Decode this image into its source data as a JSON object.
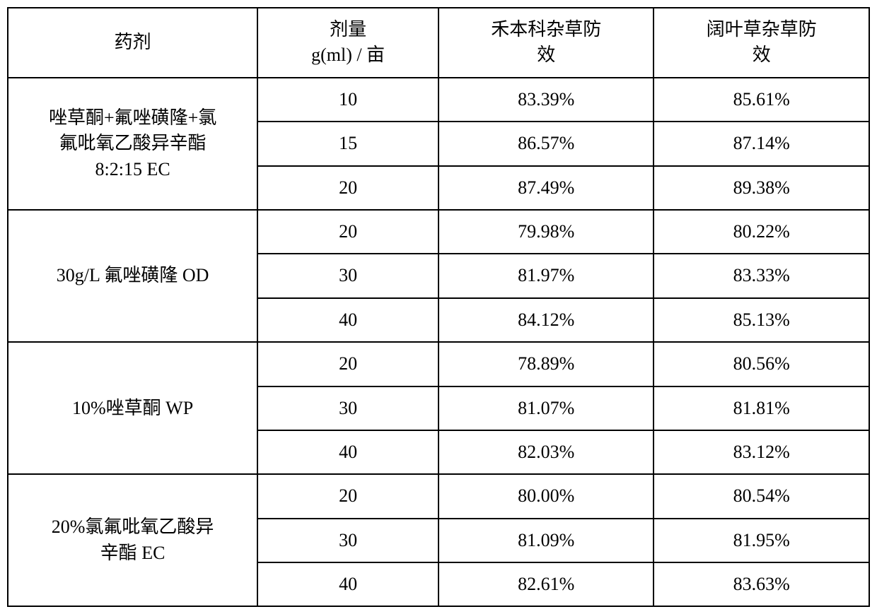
{
  "table": {
    "type": "table",
    "background_color": "#ffffff",
    "border_color": "#000000",
    "border_width": 2,
    "font_size": 26,
    "font_family": "SimSun",
    "column_widths_percent": [
      29,
      21,
      25,
      25
    ],
    "alignment": "center",
    "headers": {
      "agent": "药剂",
      "dose_line1": "剂量",
      "dose_line2": "g(ml) / 亩",
      "eff1_line1": "禾本科杂草防",
      "eff1_line2": "效",
      "eff2_line1": "阔叶草杂草防",
      "eff2_line2": "效"
    },
    "groups": [
      {
        "agent_line1": "唑草酮+氟唑磺隆+氯",
        "agent_line2": "氟吡氧乙酸异辛酯",
        "agent_line3": "8:2:15 EC",
        "rows": [
          {
            "dose": "10",
            "eff1": "83.39%",
            "eff2": "85.61%"
          },
          {
            "dose": "15",
            "eff1": "86.57%",
            "eff2": "87.14%"
          },
          {
            "dose": "20",
            "eff1": "87.49%",
            "eff2": "89.38%"
          }
        ]
      },
      {
        "agent_line1": "30g/L 氟唑磺隆 OD",
        "agent_line2": "",
        "agent_line3": "",
        "rows": [
          {
            "dose": "20",
            "eff1": "79.98%",
            "eff2": "80.22%"
          },
          {
            "dose": "30",
            "eff1": "81.97%",
            "eff2": "83.33%"
          },
          {
            "dose": "40",
            "eff1": "84.12%",
            "eff2": "85.13%"
          }
        ]
      },
      {
        "agent_line1": "10%唑草酮 WP",
        "agent_line2": "",
        "agent_line3": "",
        "rows": [
          {
            "dose": "20",
            "eff1": "78.89%",
            "eff2": "80.56%"
          },
          {
            "dose": "30",
            "eff1": "81.07%",
            "eff2": "81.81%"
          },
          {
            "dose": "40",
            "eff1": "82.03%",
            "eff2": "83.12%"
          }
        ]
      },
      {
        "agent_line1": "20%氯氟吡氧乙酸异",
        "agent_line2": "辛酯 EC",
        "agent_line3": "",
        "rows": [
          {
            "dose": "20",
            "eff1": "80.00%",
            "eff2": "80.54%"
          },
          {
            "dose": "30",
            "eff1": "81.09%",
            "eff2": "81.95%"
          },
          {
            "dose": "40",
            "eff1": "82.61%",
            "eff2": "83.63%"
          }
        ]
      }
    ]
  }
}
